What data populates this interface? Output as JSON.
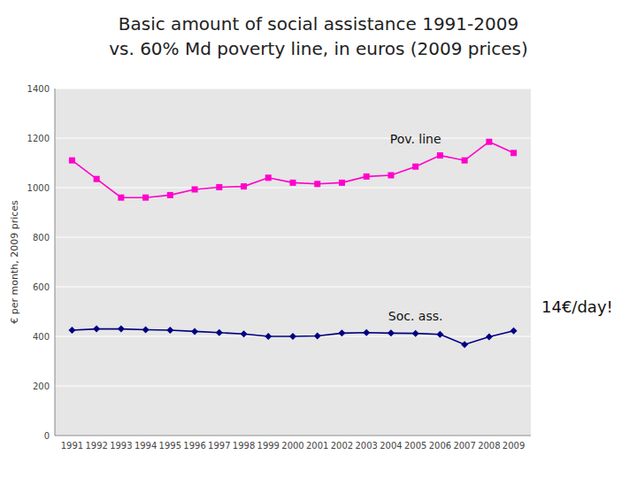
{
  "chart_data": {
    "type": "line",
    "title": "Basic amount of social assistance 1991-2009",
    "subtitle": "vs. 60% Md poverty line, in euros (2009 prices)",
    "ylabel": "€ per month, 2009 prices",
    "annotation": "14€/day!",
    "x": [
      1991,
      1992,
      1993,
      1994,
      1995,
      1996,
      1997,
      1998,
      1999,
      2000,
      2001,
      2002,
      2003,
      2004,
      2005,
      2006,
      2007,
      2008,
      2009
    ],
    "xlim": [
      1990.3,
      2009.7
    ],
    "xticks": [
      1991,
      1992,
      1993,
      1994,
      1995,
      1996,
      1997,
      1998,
      1999,
      2000,
      2001,
      2002,
      2003,
      2004,
      2005,
      2006,
      2007,
      2008,
      2009
    ],
    "ylim": [
      0,
      1400
    ],
    "yticks": [
      0,
      200,
      400,
      600,
      800,
      1000,
      1200,
      1400
    ],
    "grid": true,
    "series": [
      {
        "name": "Pov. line",
        "color": "#ff00cc",
        "marker": "square",
        "values": [
          1110,
          1035,
          960,
          960,
          970,
          993,
          1002,
          1005,
          1040,
          1020,
          1015,
          1020,
          1045,
          1050,
          1085,
          1130,
          1110,
          1185,
          1140
        ]
      },
      {
        "name": "Soc. ass.",
        "color": "#000080",
        "marker": "diamond",
        "values": [
          425,
          430,
          430,
          427,
          425,
          420,
          415,
          410,
          400,
          400,
          402,
          413,
          415,
          413,
          412,
          408,
          367,
          398,
          422
        ]
      }
    ]
  }
}
